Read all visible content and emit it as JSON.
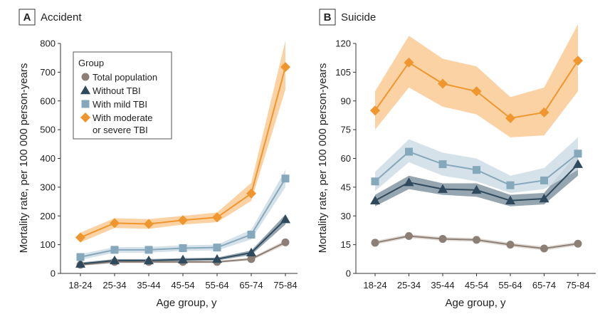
{
  "legend": {
    "title": "Group",
    "entries": [
      {
        "label_lines": [
          "Total population"
        ],
        "color": "#8c7f76",
        "marker": "circle"
      },
      {
        "label_lines": [
          "Without TBI"
        ],
        "color": "#2e4a5c",
        "marker": "triangle"
      },
      {
        "label_lines": [
          "With mild TBI"
        ],
        "color": "#86a8bb",
        "marker": "square"
      },
      {
        "label_lines": [
          "With moderate",
          "or severe TBI"
        ],
        "color": "#f0962e",
        "marker": "diamond"
      }
    ]
  },
  "colors": {
    "total": "#8c7f76",
    "total_band": "#ddd5cf",
    "without": "#2e4a5c",
    "without_band": "#8497a2",
    "mild": "#86a8bb",
    "mild_band": "#cfdde6",
    "severe": "#f0962e",
    "severe_band": "#f9ca93"
  },
  "chart_data": [
    {
      "type": "line",
      "panel_letter": "A",
      "title": "Accident",
      "xlabel": "Age group, y",
      "ylabel": "Mortality rate, per 100 000 person-years",
      "categories": [
        "18-24",
        "25-34",
        "35-44",
        "45-54",
        "55-64",
        "65-74",
        "75-84"
      ],
      "ylim": [
        0,
        800
      ],
      "yticks": [
        0,
        100,
        200,
        300,
        400,
        500,
        600,
        700,
        800
      ],
      "legend_position": "top-left",
      "series": [
        {
          "key": "total",
          "values": [
            30,
            40,
            40,
            40,
            40,
            50,
            108
          ],
          "lower": [
            26,
            36,
            36,
            36,
            36,
            45,
            100
          ],
          "upper": [
            34,
            44,
            44,
            44,
            44,
            55,
            116
          ]
        },
        {
          "key": "without",
          "values": [
            33,
            45,
            45,
            48,
            50,
            72,
            188
          ],
          "lower": [
            28,
            40,
            40,
            43,
            45,
            64,
            170
          ],
          "upper": [
            38,
            50,
            50,
            53,
            55,
            80,
            205
          ]
        },
        {
          "key": "mild",
          "values": [
            57,
            82,
            82,
            88,
            90,
            135,
            330
          ],
          "lower": [
            47,
            72,
            72,
            78,
            80,
            118,
            300
          ],
          "upper": [
            67,
            92,
            92,
            98,
            100,
            152,
            360
          ]
        },
        {
          "key": "severe",
          "values": [
            125,
            175,
            172,
            185,
            195,
            278,
            718
          ],
          "lower": [
            108,
            158,
            155,
            170,
            178,
            252,
            640
          ],
          "upper": [
            142,
            192,
            189,
            200,
            212,
            315,
            810
          ]
        }
      ]
    },
    {
      "type": "line",
      "panel_letter": "B",
      "title": "Suicide",
      "xlabel": "Age group, y",
      "ylabel": "Mortality rate, per 100 000 person-years",
      "categories": [
        "18-24",
        "25-34",
        "35-44",
        "45-54",
        "55-64",
        "65-74",
        "75-84"
      ],
      "ylim": [
        0,
        120
      ],
      "yticks": [
        0,
        15,
        30,
        45,
        60,
        75,
        90,
        105,
        120
      ],
      "series": [
        {
          "key": "total",
          "values": [
            16,
            19.5,
            18,
            17.5,
            15,
            13,
            15.5
          ],
          "lower": [
            15,
            18.5,
            17,
            16.5,
            14,
            12,
            14.5
          ],
          "upper": [
            17,
            20.5,
            19,
            18.5,
            16,
            14,
            16.5
          ]
        },
        {
          "key": "without",
          "values": [
            38,
            47.5,
            44,
            43.5,
            38,
            39,
            57
          ],
          "lower": [
            35,
            44,
            41,
            40,
            35,
            36,
            51
          ],
          "upper": [
            41,
            51,
            47,
            47,
            41,
            42,
            63
          ]
        },
        {
          "key": "mild",
          "values": [
            48,
            63.5,
            57,
            54,
            46,
            48.5,
            62.5
          ],
          "lower": [
            43,
            58,
            51,
            48,
            42,
            44,
            54
          ],
          "upper": [
            53,
            70,
            63,
            60,
            51,
            55,
            71
          ]
        },
        {
          "key": "severe",
          "values": [
            85,
            110,
            99,
            95,
            81,
            84,
            111
          ],
          "lower": [
            75,
            97,
            87,
            83,
            71,
            72,
            95
          ],
          "upper": [
            95,
            124,
            112,
            108,
            92,
            97,
            130
          ]
        }
      ]
    }
  ]
}
